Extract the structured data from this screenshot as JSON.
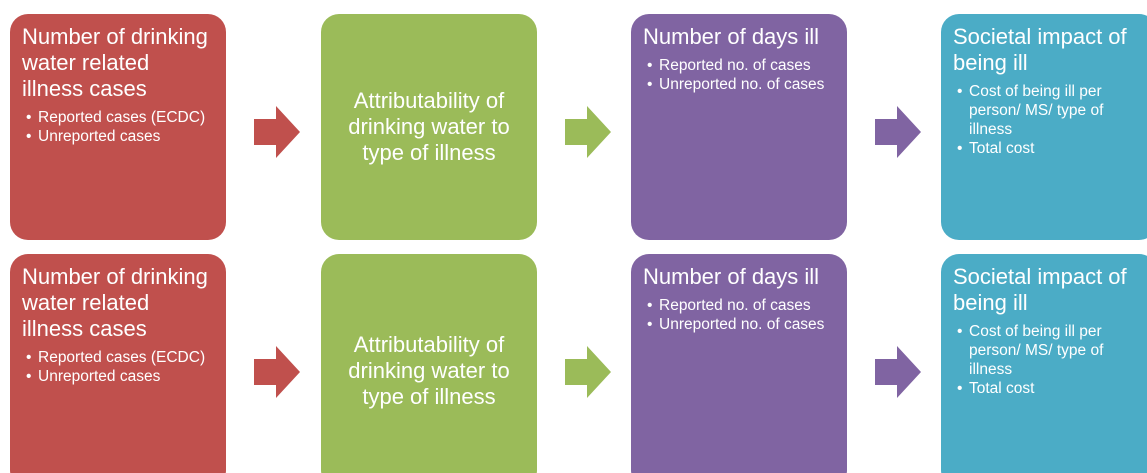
{
  "rows": [
    {
      "boxes": [
        {
          "title": "Number of drinking water related illness cases",
          "bullets": [
            "Reported cases (ECDC)",
            "Unreported cases"
          ]
        },
        {
          "title": "Attributability of drinking water to type of illness",
          "bullets": []
        },
        {
          "title": "Number of days ill",
          "bullets": [
            "Reported no. of cases",
            "Unreported no. of cases"
          ]
        },
        {
          "title": "Societal impact of being ill",
          "bullets": [
            "Cost of being ill per person/ MS/ type of illness",
            "Total cost"
          ]
        }
      ]
    },
    {
      "boxes": [
        {
          "title": "Number of drinking water related illness cases",
          "bullets": [
            "Reported cases (ECDC)",
            "Unreported cases"
          ]
        },
        {
          "title": "Attributability of drinking water to type of illness",
          "bullets": []
        },
        {
          "title": "Number of days ill",
          "bullets": [
            "Reported no. of cases",
            "Unreported no. of cases"
          ]
        },
        {
          "title": "Societal impact of being ill",
          "bullets": [
            "Cost of being ill per person/ MS/ type of illness",
            "Total cost"
          ]
        }
      ]
    }
  ]
}
